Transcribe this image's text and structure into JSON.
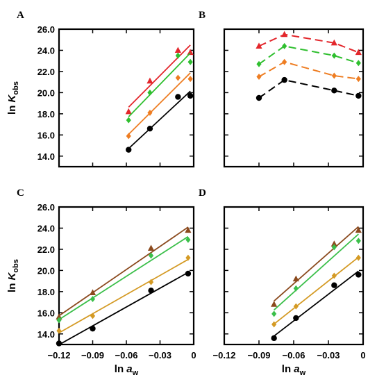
{
  "chart_data": [
    {
      "panel": "A",
      "type": "scatter",
      "xlim": [
        -0.12,
        0.0
      ],
      "ylim": [
        13.0,
        26.0
      ],
      "xticks": [
        "-0.12",
        "-0.09",
        "-0.06",
        "-0.03",
        "0"
      ],
      "yticks": [
        "14.0",
        "16.0",
        "18.0",
        "20.0",
        "22.0",
        "24.0",
        "26.0"
      ],
      "show_xticklabels": false,
      "show_yticklabels": true,
      "ylabel": "ln K_obs",
      "xlabel": "",
      "fit": "linear",
      "series": [
        {
          "color": "#e3262b",
          "marker": "triangle",
          "x": [
            -0.058,
            -0.039,
            -0.014,
            -0.003
          ],
          "y": [
            18.2,
            21.1,
            24.0,
            23.8
          ]
        },
        {
          "color": "#2fbf2f",
          "marker": "diamond",
          "x": [
            -0.058,
            -0.039,
            -0.014,
            -0.003
          ],
          "y": [
            17.4,
            20.0,
            23.5,
            22.9
          ]
        },
        {
          "color": "#ee7d22",
          "marker": "diamond",
          "x": [
            -0.058,
            -0.039,
            -0.014,
            -0.003
          ],
          "y": [
            15.9,
            18.1,
            21.4,
            21.3
          ]
        },
        {
          "color": "#000000",
          "marker": "circle",
          "x": [
            -0.058,
            -0.039,
            -0.014,
            -0.003
          ],
          "y": [
            14.6,
            16.6,
            19.6,
            19.7
          ]
        }
      ]
    },
    {
      "panel": "B",
      "type": "line",
      "xlim": [
        -0.12,
        0.0
      ],
      "ylim": [
        13.0,
        26.0
      ],
      "xticks": [
        "-0.12",
        "-0.09",
        "-0.06",
        "-0.03",
        "0"
      ],
      "yticks": [
        "14.0",
        "16.0",
        "18.0",
        "20.0",
        "22.0",
        "24.0",
        "26.0"
      ],
      "show_xticklabels": false,
      "show_yticklabels": false,
      "ylabel": "",
      "xlabel": "",
      "fit": "dashed-connect",
      "series": [
        {
          "color": "#e3262b",
          "marker": "triangle",
          "x": [
            -0.09,
            -0.068,
            -0.025,
            -0.004
          ],
          "y": [
            24.4,
            25.5,
            24.7,
            23.8
          ]
        },
        {
          "color": "#2fbf2f",
          "marker": "diamond",
          "x": [
            -0.09,
            -0.068,
            -0.025,
            -0.004
          ],
          "y": [
            22.7,
            24.4,
            23.5,
            22.8
          ]
        },
        {
          "color": "#ee7d22",
          "marker": "diamond",
          "x": [
            -0.09,
            -0.068,
            -0.025,
            -0.004
          ],
          "y": [
            21.5,
            22.9,
            21.6,
            21.3
          ]
        },
        {
          "color": "#000000",
          "marker": "circle",
          "x": [
            -0.09,
            -0.068,
            -0.025,
            -0.004
          ],
          "y": [
            19.5,
            21.2,
            20.2,
            19.7
          ]
        }
      ]
    },
    {
      "panel": "C",
      "type": "scatter",
      "xlim": [
        -0.12,
        0.0
      ],
      "ylim": [
        13.0,
        26.0
      ],
      "xticks": [
        "-0.12",
        "-0.09",
        "-0.06",
        "-0.03",
        "0"
      ],
      "yticks": [
        "14.0",
        "16.0",
        "18.0",
        "20.0",
        "22.0",
        "24.0",
        "26.0"
      ],
      "show_xticklabels": true,
      "show_yticklabels": true,
      "ylabel": "ln K_obs",
      "xlabel": "ln a_w",
      "fit": "linear",
      "series": [
        {
          "color": "#8b4a1e",
          "marker": "triangle",
          "x": [
            -0.12,
            -0.09,
            -0.038,
            -0.005
          ],
          "y": [
            15.6,
            17.9,
            22.1,
            23.8
          ]
        },
        {
          "color": "#3bbf4a",
          "marker": "diamond",
          "x": [
            -0.12,
            -0.09,
            -0.038,
            -0.005
          ],
          "y": [
            15.3,
            17.3,
            21.4,
            22.9
          ]
        },
        {
          "color": "#d49a24",
          "marker": "diamond",
          "x": [
            -0.12,
            -0.09,
            -0.038,
            -0.005
          ],
          "y": [
            14.3,
            15.7,
            18.9,
            21.2
          ]
        },
        {
          "color": "#000000",
          "marker": "circle",
          "x": [
            -0.12,
            -0.09,
            -0.038,
            -0.005
          ],
          "y": [
            13.1,
            14.5,
            18.1,
            19.7
          ]
        }
      ]
    },
    {
      "panel": "D",
      "type": "scatter",
      "xlim": [
        -0.12,
        0.0
      ],
      "ylim": [
        13.0,
        26.0
      ],
      "xticks": [
        "-0.12",
        "-0.09",
        "-0.06",
        "-0.03",
        "0"
      ],
      "yticks": [
        "14.0",
        "16.0",
        "18.0",
        "20.0",
        "22.0",
        "24.0",
        "26.0"
      ],
      "show_xticklabels": true,
      "show_yticklabels": false,
      "ylabel": "",
      "xlabel": "ln a_w",
      "fit": "linear",
      "series": [
        {
          "color": "#8b4a1e",
          "marker": "triangle",
          "x": [
            -0.077,
            -0.058,
            -0.025,
            -0.004
          ],
          "y": [
            16.8,
            19.2,
            22.5,
            23.8
          ]
        },
        {
          "color": "#3bbf4a",
          "marker": "diamond",
          "x": [
            -0.077,
            -0.058,
            -0.025,
            -0.004
          ],
          "y": [
            15.9,
            18.3,
            22.2,
            22.8
          ]
        },
        {
          "color": "#d49a24",
          "marker": "diamond",
          "x": [
            -0.077,
            -0.058,
            -0.025,
            -0.004
          ],
          "y": [
            14.9,
            16.6,
            19.5,
            21.2
          ]
        },
        {
          "color": "#000000",
          "marker": "circle",
          "x": [
            -0.077,
            -0.058,
            -0.025,
            -0.004
          ],
          "y": [
            13.6,
            15.5,
            18.6,
            19.6
          ]
        }
      ]
    }
  ]
}
